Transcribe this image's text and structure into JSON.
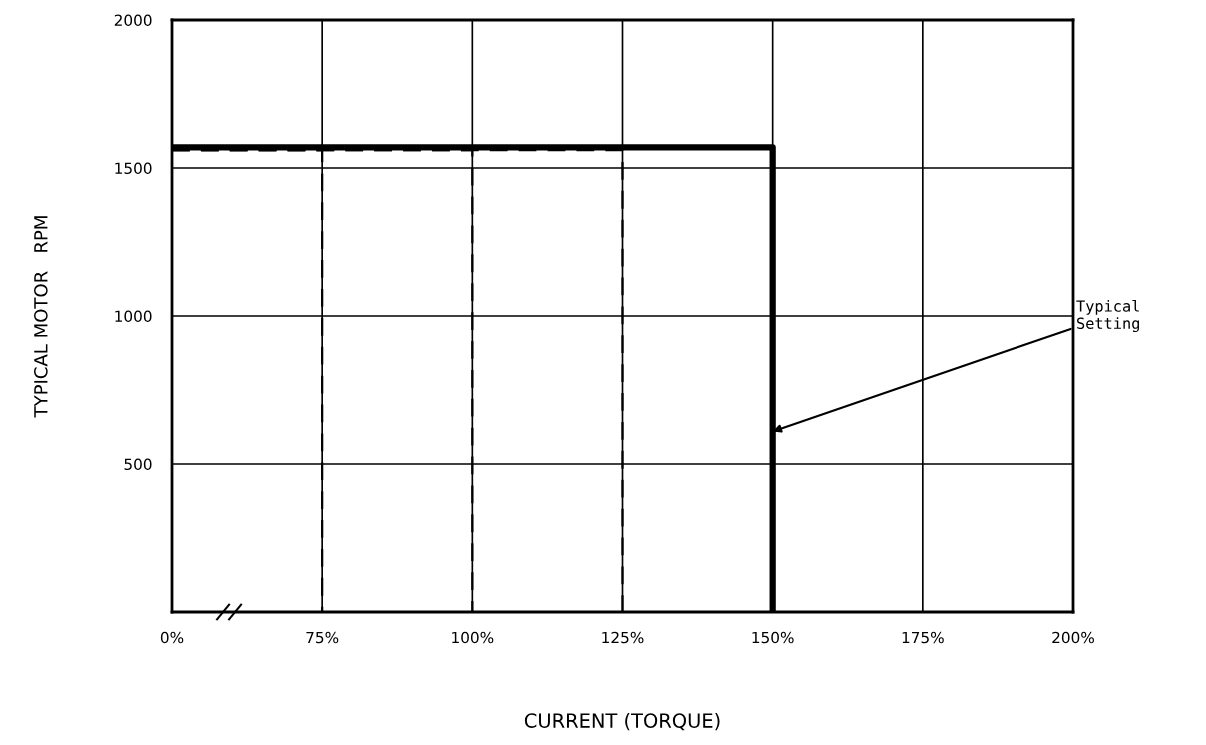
{
  "chart_data": {
    "type": "line",
    "xlabel": "CURRENT (TORQUE)",
    "ylabel": "TYPICAL MOTOR   RPM",
    "categories": [
      "0%",
      "75%",
      "100%",
      "125%",
      "150%",
      "175%",
      "200%"
    ],
    "series": [
      {
        "x": [
          "0%",
          "150%",
          "150%"
        ],
        "values": [
          1570,
          1570,
          0
        ],
        "color": "#000000",
        "line_style": "solid"
      },
      {
        "x": [
          "0%",
          "75%",
          "75%"
        ],
        "values": [
          1560,
          1560,
          0
        ],
        "color": "#000000",
        "line_style": "dashed"
      },
      {
        "x": [
          "0%",
          "100%",
          "100%"
        ],
        "values": [
          1560,
          1560,
          0
        ],
        "color": "#000000",
        "line_style": "dashed"
      },
      {
        "x": [
          "0%",
          "125%",
          "125%"
        ],
        "values": [
          1560,
          1560,
          0
        ],
        "color": "#000000",
        "line_style": "dashed"
      }
    ],
    "ylim": [
      0,
      2000
    ],
    "yticks": [
      500,
      1000,
      1500,
      2000
    ],
    "grid": true,
    "legend": false,
    "annotations": [
      {
        "text": "Typical\nSetting",
        "x": "150%",
        "y": 610
      }
    ]
  }
}
